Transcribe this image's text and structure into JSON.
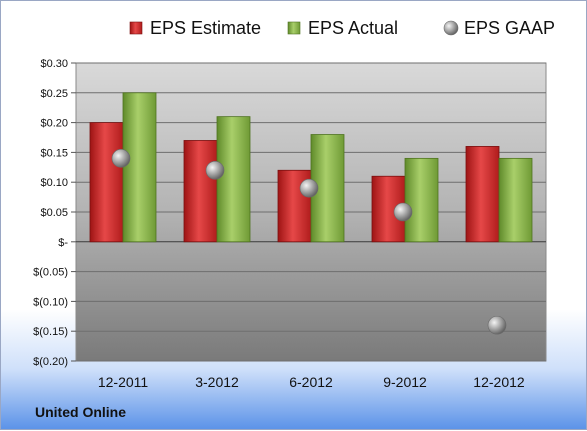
{
  "chart_data": {
    "type": "bar",
    "categories": [
      "12-2011",
      "3-2012",
      "6-2012",
      "9-2012",
      "12-2012"
    ],
    "series": [
      {
        "name": "EPS Estimate",
        "type": "bar",
        "color": "#d42a2a",
        "values": [
          0.2,
          0.17,
          0.12,
          0.11,
          0.16
        ]
      },
      {
        "name": "EPS Actual",
        "type": "bar",
        "color": "#8cb84a",
        "values": [
          0.25,
          0.21,
          0.18,
          0.14,
          0.14
        ]
      },
      {
        "name": "EPS GAAP",
        "type": "scatter",
        "color": "#9a9a9a",
        "values": [
          0.14,
          0.12,
          0.09,
          0.05,
          -0.14
        ]
      }
    ],
    "ylim": [
      -0.2,
      0.3
    ],
    "yticks": [
      0.3,
      0.25,
      0.2,
      0.15,
      0.1,
      0.05,
      0,
      -0.05,
      -0.1,
      -0.15,
      -0.2
    ],
    "ytick_labels": [
      "$0.30",
      "$0.25",
      "$0.20",
      "$0.15",
      "$0.10",
      "$0.05",
      "$-",
      "$(0.05)",
      "$(0.10)",
      "$(0.15)",
      "$(0.20)"
    ],
    "legend_position": "top",
    "grid": true
  },
  "footer": {
    "company": "United Online"
  }
}
